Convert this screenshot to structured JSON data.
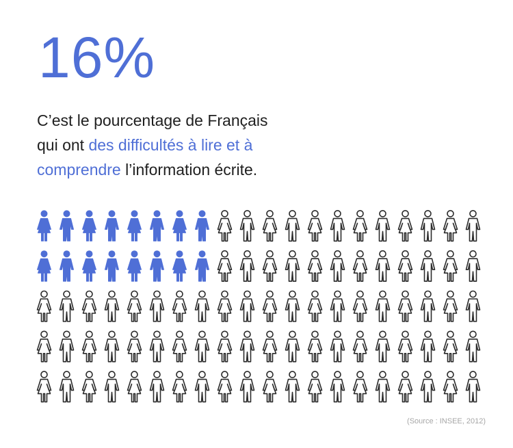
{
  "stat": {
    "value": "16%"
  },
  "headline": {
    "line1": "C’est le pourcentage de Français",
    "line2_plain": "qui ont ",
    "line2_accent": "des difficultés à lire et à",
    "line3_accent": "comprendre",
    "line3_plain": " l’information écrite."
  },
  "pictogram": {
    "rows": 5,
    "per_row": 20,
    "total_figures": 100,
    "highlighted_figures": 16,
    "highlight_color": "#4f6fd6",
    "outline_color": "#2b2b2b",
    "icons": [
      "man-icon",
      "woman-icon"
    ]
  },
  "source": {
    "label": "(Source : INSEE, 2012)"
  }
}
